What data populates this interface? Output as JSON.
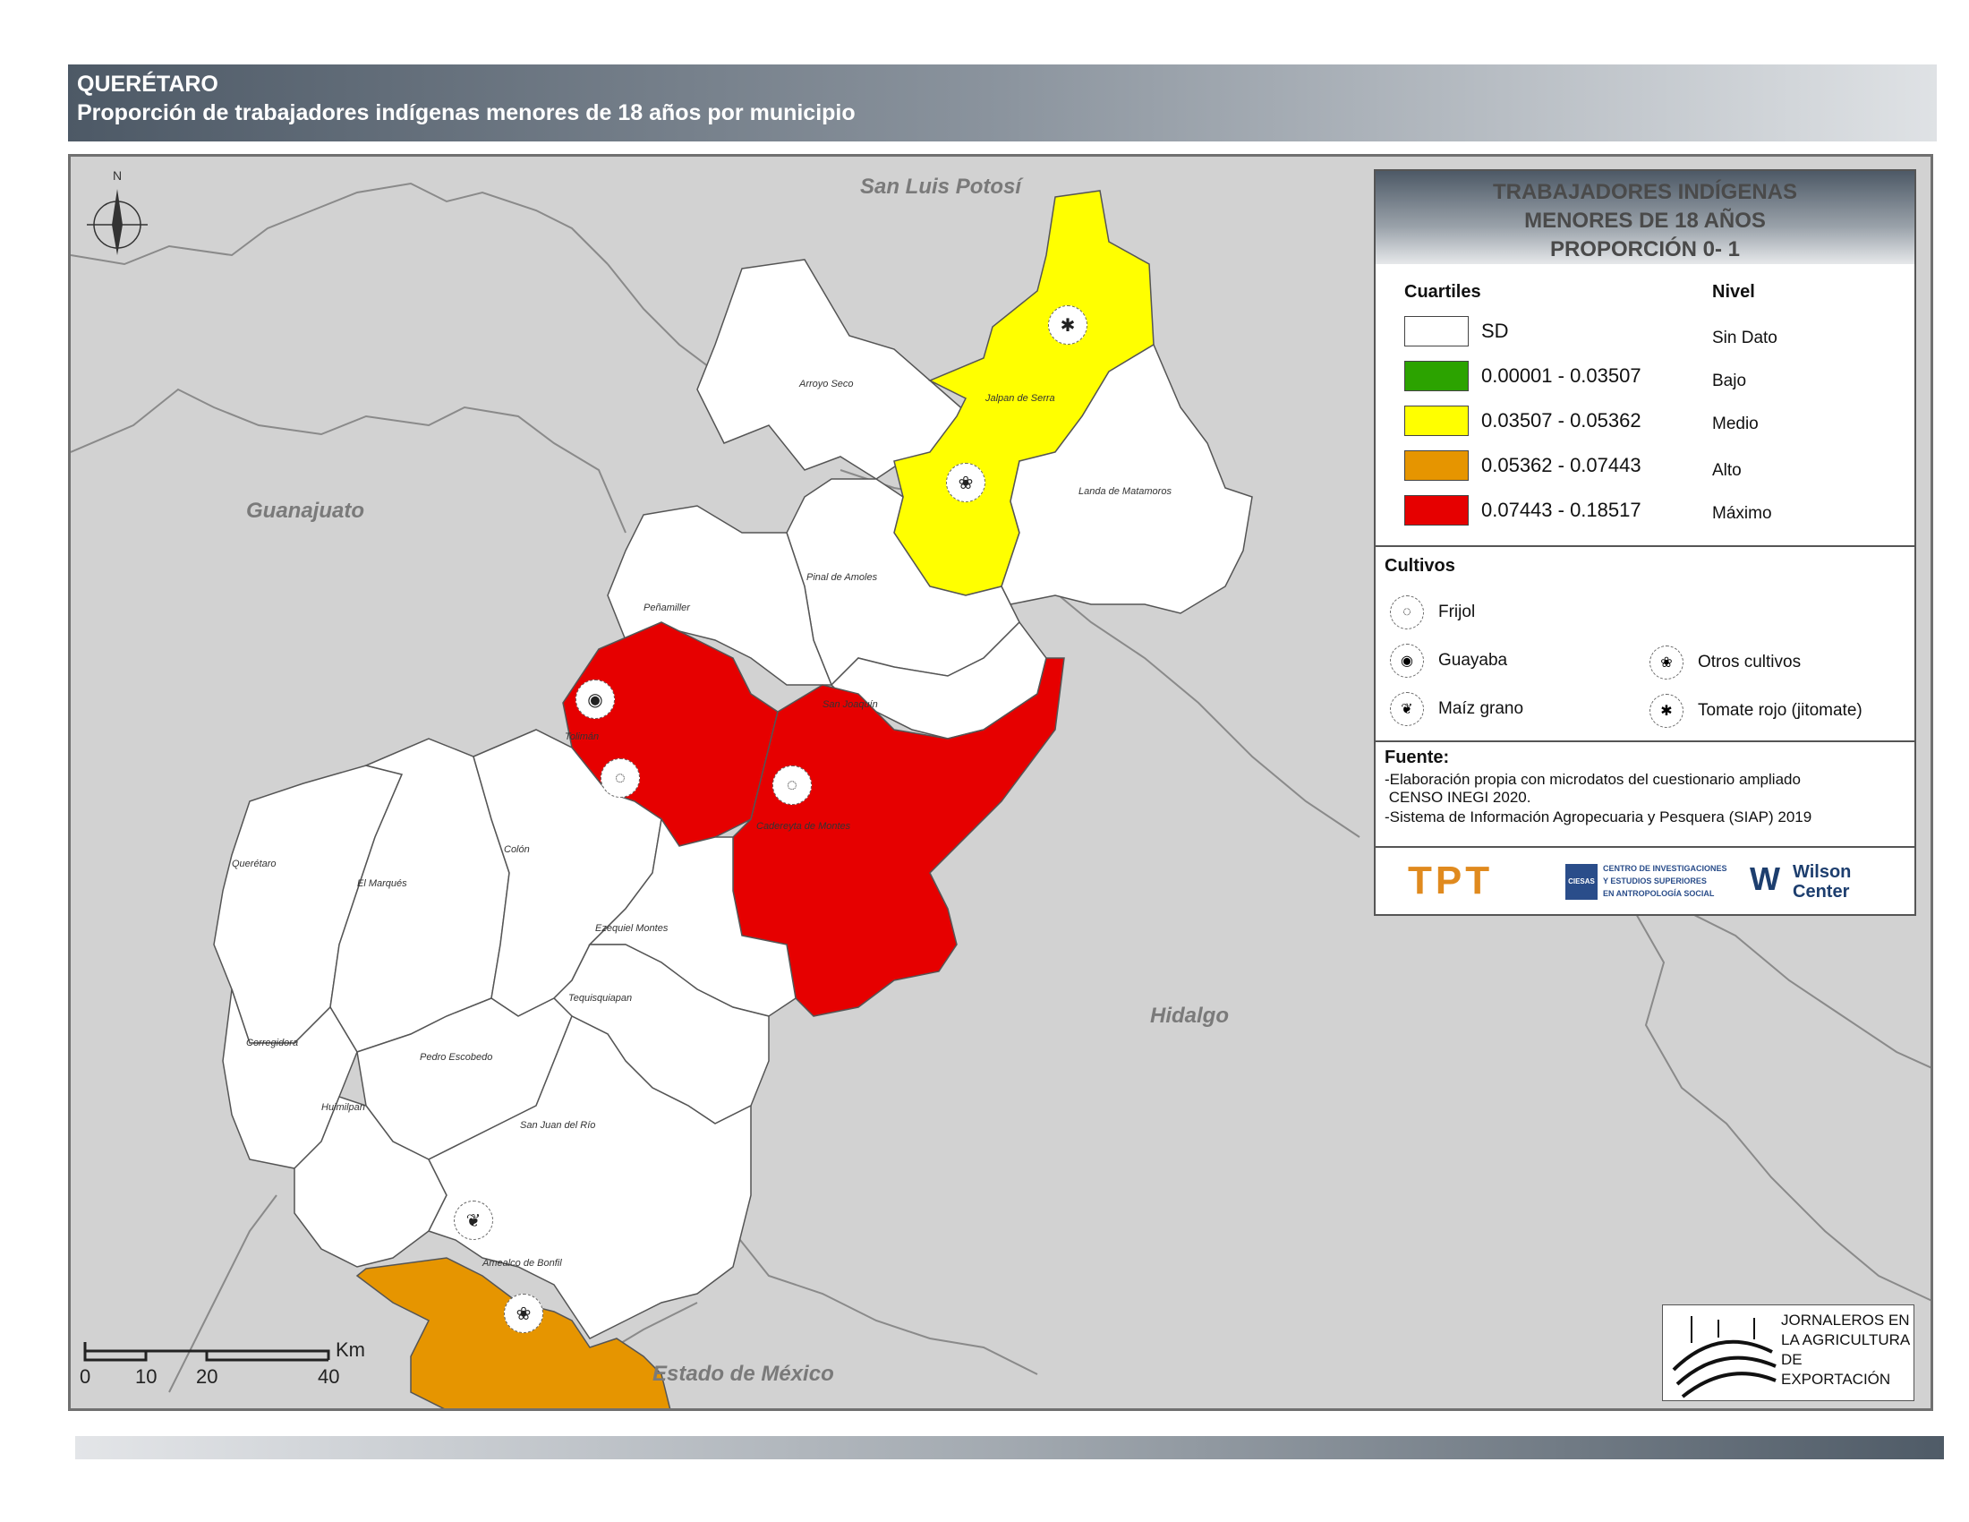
{
  "header": {
    "state": "QUERÉTARO",
    "subtitle": "Proporción de trabajadores indígenas menores de 18 años por municipio"
  },
  "map": {
    "north_label": "N",
    "neighbor_states": [
      "San Luis Potosí",
      "Guanajuato",
      "Hidalgo",
      "Estado de México"
    ],
    "municipalities": [
      {
        "name": "Arroyo Seco",
        "level": "SD"
      },
      {
        "name": "Jalpan de Serra",
        "level": "Medio"
      },
      {
        "name": "Landa de Matamoros",
        "level": "SD"
      },
      {
        "name": "Pinal de Amoles",
        "level": "SD"
      },
      {
        "name": "Peñamiller",
        "level": "SD"
      },
      {
        "name": "Tolimán",
        "level": "Máximo"
      },
      {
        "name": "San Joaquín",
        "level": "SD"
      },
      {
        "name": "Cadereyta de Montes",
        "level": "Máximo"
      },
      {
        "name": "Querétaro",
        "level": "SD"
      },
      {
        "name": "El Marqués",
        "level": "SD"
      },
      {
        "name": "Colón",
        "level": "SD"
      },
      {
        "name": "Ezequiel Montes",
        "level": "SD"
      },
      {
        "name": "Tequisquiapan",
        "level": "SD"
      },
      {
        "name": "Corregidora",
        "level": "SD"
      },
      {
        "name": "Pedro Escobedo",
        "level": "SD"
      },
      {
        "name": "Huimilpan",
        "level": "SD"
      },
      {
        "name": "San Juan del Río",
        "level": "SD"
      },
      {
        "name": "Amealco de Bonfil",
        "level": "Alto"
      }
    ],
    "scale": {
      "ticks": [
        "0",
        "10",
        "20",
        "40"
      ],
      "unit": "Km"
    }
  },
  "legend": {
    "title_lines": [
      "TRABAJADORES INDÍGENAS",
      "MENORES DE 18 AÑOS",
      "PROPORCIÓN 0- 1"
    ],
    "quartiles_header": "Cuartiles",
    "level_header": "Nivel",
    "classes": [
      {
        "range": "SD",
        "level": "Sin Dato",
        "color": "#ffffff"
      },
      {
        "range": "0.00001 - 0.03507",
        "level": "Bajo",
        "color": "#2ca300"
      },
      {
        "range": "0.03507 - 0.05362",
        "level": "Medio",
        "color": "#ffff00"
      },
      {
        "range": "0.05362 - 0.07443",
        "level": "Alto",
        "color": "#e69500"
      },
      {
        "range": "0.07443 - 0.18517",
        "level": "Máximo",
        "color": "#e60000"
      }
    ],
    "crops_header": "Cultivos",
    "crops": [
      {
        "label": "Frijol",
        "icon": "frijol-icon"
      },
      {
        "label": "Guayaba",
        "icon": "guayaba-icon"
      },
      {
        "label": "Maíz grano",
        "icon": "maiz-icon"
      },
      {
        "label": "Otros cultivos",
        "icon": "otros-cultivos-icon"
      },
      {
        "label": "Tomate rojo (jitomate)",
        "icon": "tomate-icon"
      }
    ],
    "source_header": "Fuente:",
    "source_lines": [
      "-Elaboración propia con microdatos del cuestionario ampliado",
      " CENSO INEGI 2020.",
      "-Sistema de Información Agropecuaria y Pesquera (SIAP) 2019"
    ]
  },
  "logos": {
    "tpt": "TPT",
    "ciesas_mark": "CIESAS",
    "ciesas_lines": [
      "CENTRO DE INVESTIGACIONES",
      "Y ESTUDIOS SUPERIORES",
      "EN ANTROPOLOGÍA SOCIAL"
    ],
    "wilson_lines": [
      "Wilson",
      "Center"
    ],
    "jornaleros_lines": [
      "JORNALEROS EN",
      "LA AGRICULTURA",
      "DE EXPORTACIÓN"
    ]
  }
}
